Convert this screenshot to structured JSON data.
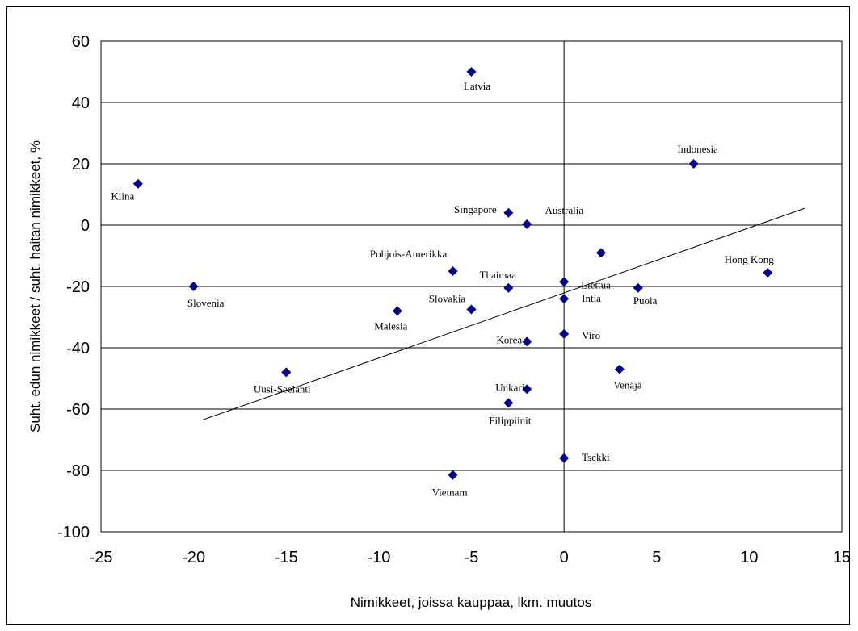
{
  "chart_data": {
    "type": "scatter",
    "xlabel": "Nimikkeet, joissa kauppaa, lkm. muutos",
    "ylabel": "Suht. edun nimikkeet / suht. haitan nimikkeet, %",
    "xlim": [
      -25,
      15
    ],
    "ylim": [
      -100,
      60
    ],
    "xticks": [
      -25,
      -20,
      -15,
      -10,
      -5,
      0,
      5,
      10,
      15
    ],
    "yticks": [
      -100,
      -80,
      -60,
      -40,
      -20,
      0,
      20,
      40,
      60
    ],
    "grid": "horizontal",
    "marker": "diamond",
    "marker_color": "#00008B",
    "points": [
      {
        "label": "Latvia",
        "x": -5,
        "y": 50
      },
      {
        "label": "Indonesia",
        "x": 7,
        "y": 20
      },
      {
        "label": "Kiina",
        "x": -23,
        "y": 13.5
      },
      {
        "label": "Singapore",
        "x": -3,
        "y": 4
      },
      {
        "label": "Australia",
        "x": -2,
        "y": 0.3
      },
      {
        "label": "Pohjois-Amerikka",
        "x": -6,
        "y": -15
      },
      {
        "label": "Hong Kong",
        "x": 11,
        "y": -15.5
      },
      {
        "label": "Thaimaa",
        "x": -3,
        "y": -20.5
      },
      {
        "label": "Liettua",
        "x": 0,
        "y": -18.5
      },
      {
        "label": "Puola",
        "x": 4,
        "y": -20.5
      },
      {
        "label": "Slovenia",
        "x": -20,
        "y": -20
      },
      {
        "label": "Intia",
        "x": 0,
        "y": -24
      },
      {
        "label": "Slovakia",
        "x": -5,
        "y": -27.5
      },
      {
        "label": "Malesia",
        "x": -9,
        "y": -28
      },
      {
        "label": "Viro",
        "x": 0,
        "y": -35.5
      },
      {
        "label": "Korea",
        "x": -2,
        "y": -38
      },
      {
        "label": "Venäjä",
        "x": 3,
        "y": -47
      },
      {
        "label": "Uusi-Seelanti",
        "x": -15,
        "y": -48
      },
      {
        "label": "Unkari",
        "x": -2,
        "y": -53.5
      },
      {
        "label": "Filippiinit",
        "x": -3,
        "y": -58
      },
      {
        "label": "Tsekki",
        "x": 0,
        "y": -76
      },
      {
        "label": "Vietnam",
        "x": -6,
        "y": -81.5
      },
      {
        "label": "",
        "x": 2,
        "y": -9
      }
    ],
    "trendline": {
      "x": [
        -19.5,
        13
      ],
      "y": [
        -63.5,
        5.5
      ]
    }
  }
}
